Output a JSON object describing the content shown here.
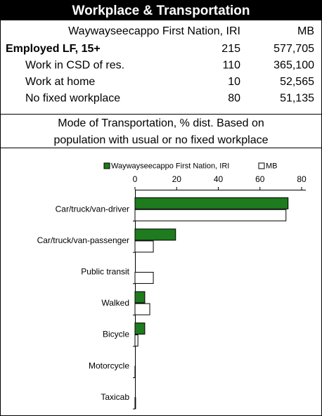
{
  "header": {
    "title": "Workplace & Transportation"
  },
  "table": {
    "columns": [
      "Waywayseecappo First Nation, IRI",
      "MB"
    ],
    "rows": [
      [
        "Employed LF, 15+",
        "215",
        "577,705"
      ],
      [
        "Work in CSD of res.",
        "110",
        "365,100"
      ],
      [
        "Work at home",
        "10",
        "52,565"
      ],
      [
        "No fixed workplace",
        "80",
        "51,135"
      ]
    ]
  },
  "chart_title": "Mode of Transportation, % dist. Based on population with usual or no fixed workplace",
  "chart_data": {
    "type": "bar",
    "orientation": "horizontal",
    "categories": [
      "Car/truck/van-driver",
      "Car/truck/van-passenger",
      "Public transit",
      "Walked",
      "Bicycle",
      "Motorcycle",
      "Taxicab"
    ],
    "series": [
      {
        "name": "Waywayseecappo First Nation, IRI",
        "color": "#1e7b1e",
        "values": [
          73.5,
          19.5,
          0,
          4.7,
          4.7,
          0,
          0
        ]
      },
      {
        "name": "MB",
        "color": "#ffffff",
        "values": [
          72.5,
          8.8,
          8.8,
          7.1,
          1.4,
          0.2,
          0.3
        ]
      }
    ],
    "xlim": [
      0,
      80
    ],
    "xticks": [
      0,
      20,
      40,
      60,
      80
    ],
    "legend": "top"
  }
}
